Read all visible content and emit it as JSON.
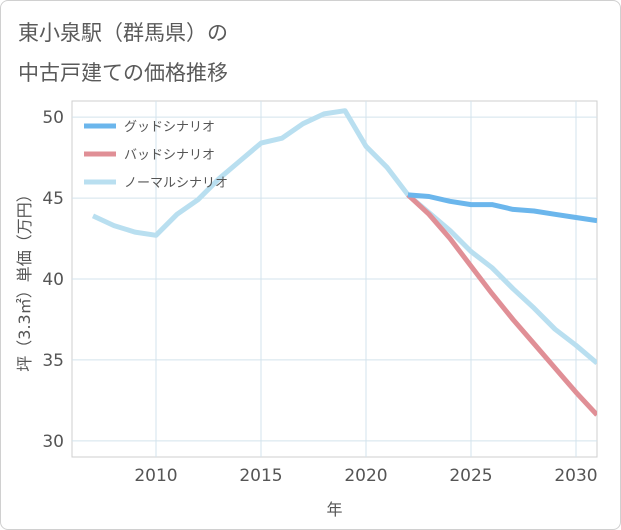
{
  "chart_data": {
    "type": "line",
    "title_lines": [
      "東小泉駅（群馬県）の",
      "中古戸建ての価格推移"
    ],
    "xlabel": "年",
    "ylabel": "坪（3.3㎡）単価（万円）",
    "xlim": [
      2006,
      2031
    ],
    "ylim": [
      29,
      51
    ],
    "xticks": [
      2010,
      2015,
      2020,
      2025,
      2030
    ],
    "yticks": [
      30,
      35,
      40,
      45,
      50
    ],
    "grid": true,
    "legend_position": "top-left",
    "series": [
      {
        "name": "グッドシナリオ",
        "color": "#6bb6ec",
        "points": [
          [
            2022,
            45.2
          ],
          [
            2023,
            45.1
          ],
          [
            2024,
            44.8
          ],
          [
            2025,
            44.6
          ],
          [
            2026,
            44.6
          ],
          [
            2027,
            44.3
          ],
          [
            2028,
            44.2
          ],
          [
            2029,
            44.0
          ],
          [
            2030,
            43.8
          ],
          [
            2031,
            43.6
          ]
        ]
      },
      {
        "name": "バッドシナリオ",
        "color": "#e08f96",
        "points": [
          [
            2022,
            45.2
          ],
          [
            2023,
            44.0
          ],
          [
            2024,
            42.5
          ],
          [
            2025,
            40.8
          ],
          [
            2026,
            39.1
          ],
          [
            2027,
            37.5
          ],
          [
            2028,
            36.0
          ],
          [
            2029,
            34.5
          ],
          [
            2030,
            33.0
          ],
          [
            2031,
            31.6
          ]
        ]
      },
      {
        "name": "ノーマルシナリオ",
        "color": "#b9dff0",
        "points": [
          [
            2007,
            43.9
          ],
          [
            2008,
            43.3
          ],
          [
            2009,
            42.9
          ],
          [
            2010,
            42.7
          ],
          [
            2011,
            44.0
          ],
          [
            2012,
            44.9
          ],
          [
            2013,
            46.2
          ],
          [
            2014,
            47.3
          ],
          [
            2015,
            48.4
          ],
          [
            2016,
            48.7
          ],
          [
            2017,
            49.6
          ],
          [
            2018,
            50.2
          ],
          [
            2019,
            50.4
          ],
          [
            2020,
            48.2
          ],
          [
            2021,
            46.9
          ],
          [
            2022,
            45.2
          ],
          [
            2023,
            44.1
          ],
          [
            2024,
            43.0
          ],
          [
            2025,
            41.7
          ],
          [
            2026,
            40.7
          ],
          [
            2027,
            39.4
          ],
          [
            2028,
            38.2
          ],
          [
            2029,
            36.9
          ],
          [
            2030,
            35.9
          ],
          [
            2031,
            34.8
          ]
        ]
      }
    ]
  }
}
